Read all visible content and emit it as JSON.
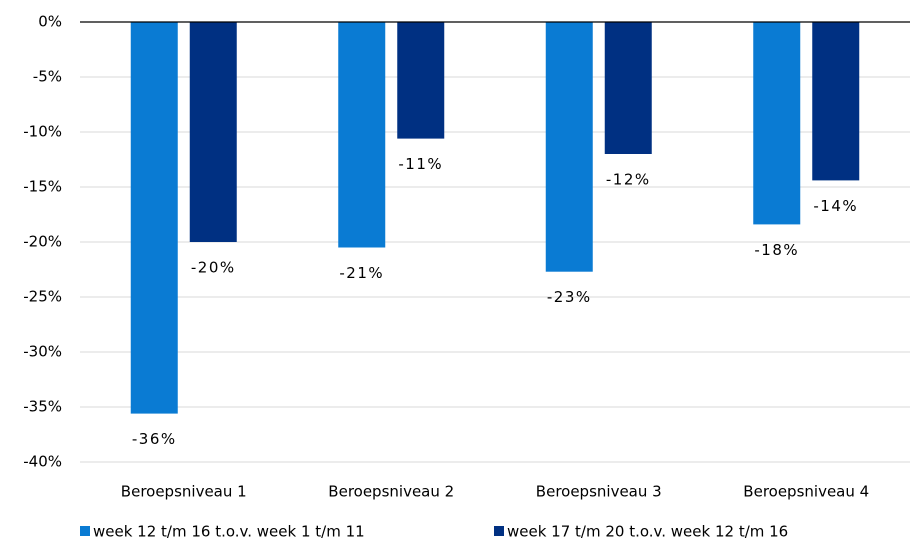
{
  "chart_data": {
    "type": "bar",
    "categories": [
      "Beroepsniveau 1",
      "Beroepsniveau 2",
      "Beroepsniveau 3",
      "Beroepsniveau 4"
    ],
    "series": [
      {
        "name": "week 12 t/m 16 t.o.v. week 1 t/m 11",
        "color": "#0a7bd3",
        "values": [
          -35.6,
          -20.5,
          -22.7,
          -18.4
        ],
        "value_labels": [
          "-36%",
          "-21%",
          "-23%",
          "-18%"
        ]
      },
      {
        "name": "week 17 t/m 20 t.o.v. week 12 t/m 16",
        "color": "#003082",
        "values": [
          -20.0,
          -10.6,
          -12.0,
          -14.4
        ],
        "value_labels": [
          "-20%",
          "-11%",
          "-12%",
          "-14%"
        ]
      }
    ],
    "ylim": [
      -40,
      0
    ],
    "yticks": [
      {
        "value": 0,
        "label": "0%"
      },
      {
        "value": -5,
        "label": "-5%"
      },
      {
        "value": -10,
        "label": "-10%"
      },
      {
        "value": -15,
        "label": "-15%"
      },
      {
        "value": -20,
        "label": "-20%"
      },
      {
        "value": -25,
        "label": "-25%"
      },
      {
        "value": -30,
        "label": "-30%"
      },
      {
        "value": -35,
        "label": "-35%"
      },
      {
        "value": -40,
        "label": "-40%"
      }
    ],
    "grid": true,
    "legend": "bottom"
  }
}
